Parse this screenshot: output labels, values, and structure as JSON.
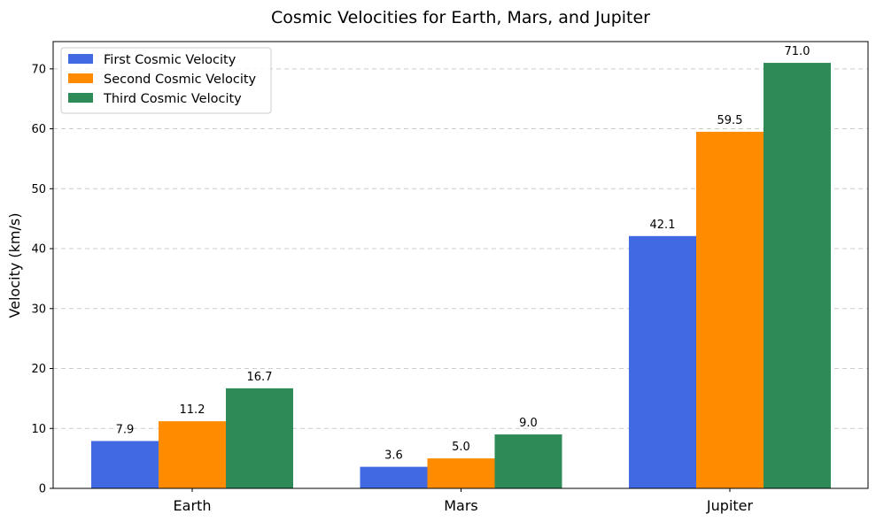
{
  "chart_data": {
    "type": "bar",
    "title": "Cosmic Velocities for Earth, Mars, and Jupiter",
    "xlabel": "",
    "ylabel": "Velocity (km/s)",
    "categories": [
      "Earth",
      "Mars",
      "Jupiter"
    ],
    "series": [
      {
        "name": "First Cosmic Velocity",
        "color": "#4169e1",
        "values": [
          7.9,
          3.6,
          42.1
        ],
        "labels": [
          "7.9",
          "3.6",
          "42.1"
        ]
      },
      {
        "name": "Second Cosmic Velocity",
        "color": "#ff8c00",
        "values": [
          11.2,
          5.0,
          59.5
        ],
        "labels": [
          "11.2",
          "5.0",
          "59.5"
        ]
      },
      {
        "name": "Third Cosmic Velocity",
        "color": "#2e8b57",
        "values": [
          16.7,
          9.0,
          71.0
        ],
        "labels": [
          "16.7",
          "9.0",
          "71.0"
        ]
      }
    ],
    "ylim": [
      0,
      74.55
    ],
    "yticks": [
      0,
      10,
      20,
      30,
      40,
      50,
      60,
      70
    ],
    "ytick_labels": [
      "0",
      "10",
      "20",
      "30",
      "40",
      "50",
      "60",
      "70"
    ],
    "grid": "y-dashed",
    "legend_position": "top-left"
  }
}
